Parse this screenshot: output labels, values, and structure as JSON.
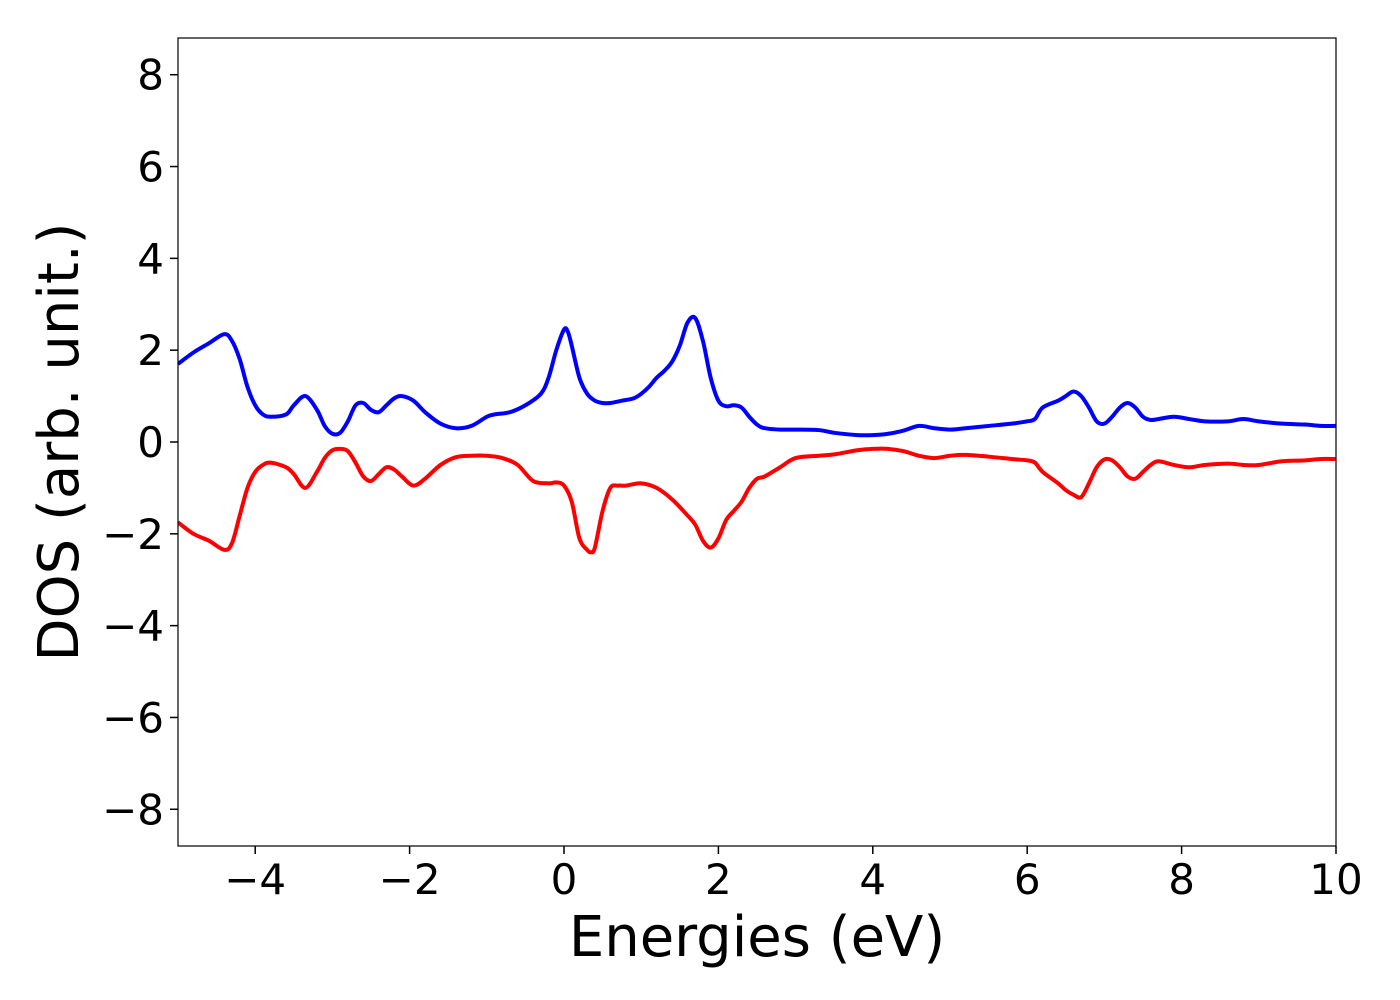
{
  "chart_data": {
    "type": "line",
    "title": "",
    "xlabel": "Energies (eV)",
    "ylabel": "DOS (arb. unit.)",
    "xlim": [
      -5,
      10
    ],
    "ylim": [
      -8.8,
      8.8
    ],
    "xticks": [
      -4,
      -2,
      0,
      2,
      4,
      6,
      8,
      10
    ],
    "yticks": [
      8,
      6,
      4,
      2,
      0,
      -2,
      -4,
      -6,
      -8
    ],
    "xtick_labels": [
      "−4",
      "−2",
      "0",
      "2",
      "4",
      "6",
      "8",
      "10"
    ],
    "ytick_labels": [
      "8",
      "6",
      "4",
      "2",
      "0",
      "−2",
      "−4",
      "−6",
      "−8"
    ],
    "grid": false,
    "legend": "none",
    "series": [
      {
        "color": "#0000ff",
        "x": [
          -5.0,
          -4.8,
          -4.6,
          -4.4,
          -4.3,
          -4.2,
          -4.1,
          -4.0,
          -3.9,
          -3.8,
          -3.6,
          -3.5,
          -3.35,
          -3.2,
          -3.1,
          -3.0,
          -2.9,
          -2.8,
          -2.7,
          -2.6,
          -2.5,
          -2.4,
          -2.3,
          -2.2,
          -2.1,
          -1.95,
          -1.8,
          -1.6,
          -1.4,
          -1.2,
          -1.0,
          -0.9,
          -0.7,
          -0.5,
          -0.3,
          -0.2,
          -0.1,
          0.0,
          0.05,
          0.1,
          0.2,
          0.3,
          0.4,
          0.5,
          0.6,
          0.75,
          0.9,
          1.0,
          1.1,
          1.2,
          1.3,
          1.4,
          1.5,
          1.6,
          1.7,
          1.8,
          1.9,
          2.0,
          2.1,
          2.2,
          2.3,
          2.4,
          2.5,
          2.6,
          2.8,
          3.0,
          3.3,
          3.5,
          3.8,
          4.0,
          4.2,
          4.4,
          4.6,
          4.8,
          5.0,
          5.2,
          5.5,
          5.8,
          6.0,
          6.1,
          6.2,
          6.4,
          6.5,
          6.6,
          6.7,
          6.8,
          6.9,
          7.0,
          7.1,
          7.2,
          7.3,
          7.4,
          7.5,
          7.6,
          7.7,
          7.9,
          8.1,
          8.3,
          8.6,
          8.8,
          9.0,
          9.3,
          9.6,
          9.8,
          10.0
        ],
        "values": [
          1.7,
          1.95,
          2.15,
          2.35,
          2.2,
          1.8,
          1.2,
          0.8,
          0.6,
          0.55,
          0.6,
          0.8,
          1.0,
          0.7,
          0.35,
          0.18,
          0.2,
          0.45,
          0.8,
          0.85,
          0.7,
          0.65,
          0.8,
          0.95,
          1.0,
          0.9,
          0.65,
          0.4,
          0.3,
          0.35,
          0.55,
          0.6,
          0.65,
          0.8,
          1.05,
          1.4,
          2.0,
          2.45,
          2.4,
          2.1,
          1.4,
          1.05,
          0.9,
          0.85,
          0.85,
          0.9,
          0.95,
          1.05,
          1.2,
          1.4,
          1.55,
          1.75,
          2.1,
          2.6,
          2.7,
          2.2,
          1.4,
          0.9,
          0.78,
          0.8,
          0.75,
          0.55,
          0.38,
          0.3,
          0.27,
          0.27,
          0.26,
          0.2,
          0.15,
          0.15,
          0.18,
          0.25,
          0.35,
          0.3,
          0.27,
          0.3,
          0.35,
          0.4,
          0.45,
          0.5,
          0.75,
          0.9,
          1.0,
          1.1,
          1.0,
          0.75,
          0.45,
          0.4,
          0.55,
          0.75,
          0.85,
          0.75,
          0.55,
          0.48,
          0.5,
          0.55,
          0.5,
          0.45,
          0.45,
          0.5,
          0.45,
          0.4,
          0.38,
          0.35,
          0.35
        ]
      },
      {
        "color": "#ff0000",
        "x": [
          -5.0,
          -4.8,
          -4.6,
          -4.4,
          -4.3,
          -4.2,
          -4.1,
          -4.0,
          -3.9,
          -3.8,
          -3.6,
          -3.5,
          -3.35,
          -3.2,
          -3.1,
          -3.0,
          -2.9,
          -2.8,
          -2.7,
          -2.6,
          -2.5,
          -2.4,
          -2.3,
          -2.2,
          -2.1,
          -1.95,
          -1.8,
          -1.6,
          -1.4,
          -1.2,
          -1.0,
          -0.8,
          -0.6,
          -0.4,
          -0.2,
          -0.1,
          0.0,
          0.1,
          0.2,
          0.3,
          0.35,
          0.4,
          0.5,
          0.6,
          0.7,
          0.8,
          1.0,
          1.2,
          1.4,
          1.6,
          1.7,
          1.8,
          1.9,
          2.0,
          2.1,
          2.2,
          2.3,
          2.4,
          2.5,
          2.6,
          2.8,
          3.0,
          3.3,
          3.5,
          3.8,
          4.0,
          4.2,
          4.4,
          4.6,
          4.8,
          5.0,
          5.2,
          5.5,
          5.8,
          6.0,
          6.1,
          6.2,
          6.4,
          6.5,
          6.6,
          6.7,
          6.8,
          6.9,
          7.0,
          7.1,
          7.2,
          7.3,
          7.4,
          7.5,
          7.6,
          7.7,
          7.9,
          8.1,
          8.3,
          8.6,
          8.8,
          9.0,
          9.3,
          9.6,
          9.8,
          10.0
        ],
        "values": [
          -1.75,
          -2.0,
          -2.15,
          -2.35,
          -2.2,
          -1.6,
          -1.0,
          -0.65,
          -0.5,
          -0.45,
          -0.55,
          -0.7,
          -1.0,
          -0.65,
          -0.35,
          -0.18,
          -0.15,
          -0.2,
          -0.45,
          -0.75,
          -0.85,
          -0.7,
          -0.55,
          -0.6,
          -0.75,
          -0.95,
          -0.8,
          -0.5,
          -0.33,
          -0.3,
          -0.3,
          -0.35,
          -0.5,
          -0.85,
          -0.9,
          -0.88,
          -0.95,
          -1.3,
          -2.1,
          -2.35,
          -2.4,
          -2.3,
          -1.5,
          -1.0,
          -0.95,
          -0.95,
          -0.9,
          -1.0,
          -1.25,
          -1.6,
          -1.8,
          -2.15,
          -2.3,
          -2.1,
          -1.7,
          -1.5,
          -1.3,
          -1.0,
          -0.8,
          -0.75,
          -0.55,
          -0.35,
          -0.3,
          -0.27,
          -0.18,
          -0.15,
          -0.15,
          -0.2,
          -0.3,
          -0.35,
          -0.3,
          -0.28,
          -0.32,
          -0.37,
          -0.4,
          -0.45,
          -0.65,
          -0.9,
          -1.05,
          -1.15,
          -1.2,
          -0.9,
          -0.55,
          -0.38,
          -0.4,
          -0.55,
          -0.75,
          -0.8,
          -0.65,
          -0.5,
          -0.42,
          -0.5,
          -0.55,
          -0.5,
          -0.47,
          -0.5,
          -0.5,
          -0.42,
          -0.4,
          -0.37,
          -0.37
        ]
      }
    ]
  }
}
